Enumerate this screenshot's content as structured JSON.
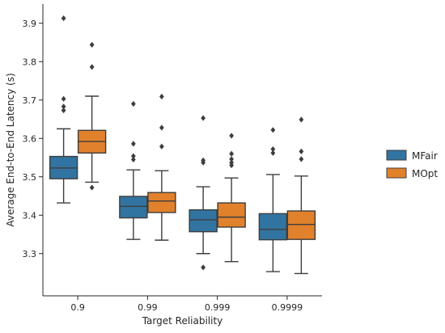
{
  "chart_data": {
    "type": "box",
    "xlabel": "Target Reliability",
    "ylabel": "Average End-to-End Latency (s)",
    "categories": [
      "0.9",
      "0.99",
      "0.999",
      "0.9999"
    ],
    "ylim": [
      3.19,
      3.95
    ],
    "yticks": [
      3.3,
      3.4,
      3.5,
      3.6,
      3.7,
      3.8,
      3.9
    ],
    "ytick_labels": [
      "3.3",
      "3.4",
      "3.5",
      "3.6",
      "3.7",
      "3.8",
      "3.9"
    ],
    "legend": {
      "placement": "right",
      "entries": [
        "MFair",
        "MOpt"
      ]
    },
    "series": [
      {
        "name": "MFair",
        "color": "#3274a1",
        "boxes": [
          {
            "whisker_low": 3.432,
            "q1": 3.495,
            "median": 3.523,
            "q3": 3.553,
            "whisker_high": 3.625,
            "outliers": [
              3.913,
              3.703,
              3.683,
              3.673
            ]
          },
          {
            "whisker_low": 3.337,
            "q1": 3.393,
            "median": 3.423,
            "q3": 3.449,
            "whisker_high": 3.518,
            "outliers": [
              3.69,
              3.586,
              3.554,
              3.545
            ]
          },
          {
            "whisker_low": 3.3,
            "q1": 3.357,
            "median": 3.388,
            "q3": 3.414,
            "whisker_high": 3.474,
            "outliers": [
              3.653,
              3.543,
              3.537,
              3.264
            ]
          },
          {
            "whisker_low": 3.253,
            "q1": 3.336,
            "median": 3.363,
            "q3": 3.404,
            "whisker_high": 3.506,
            "outliers": [
              3.622,
              3.572,
              3.562
            ]
          }
        ]
      },
      {
        "name": "MOpt",
        "color": "#e1812c",
        "boxes": [
          {
            "whisker_low": 3.486,
            "q1": 3.562,
            "median": 3.592,
            "q3": 3.621,
            "whisker_high": 3.71,
            "outliers": [
              3.844,
              3.786,
              3.472
            ]
          },
          {
            "whisker_low": 3.335,
            "q1": 3.407,
            "median": 3.437,
            "q3": 3.459,
            "whisker_high": 3.516,
            "outliers": [
              3.709,
              3.628,
              3.579
            ]
          },
          {
            "whisker_low": 3.279,
            "q1": 3.369,
            "median": 3.395,
            "q3": 3.432,
            "whisker_high": 3.497,
            "outliers": [
              3.607,
              3.56,
              3.546,
              3.537,
              3.53
            ]
          },
          {
            "whisker_low": 3.248,
            "q1": 3.337,
            "median": 3.376,
            "q3": 3.411,
            "whisker_high": 3.502,
            "outliers": [
              3.649,
              3.566,
              3.546
            ]
          }
        ]
      }
    ]
  }
}
